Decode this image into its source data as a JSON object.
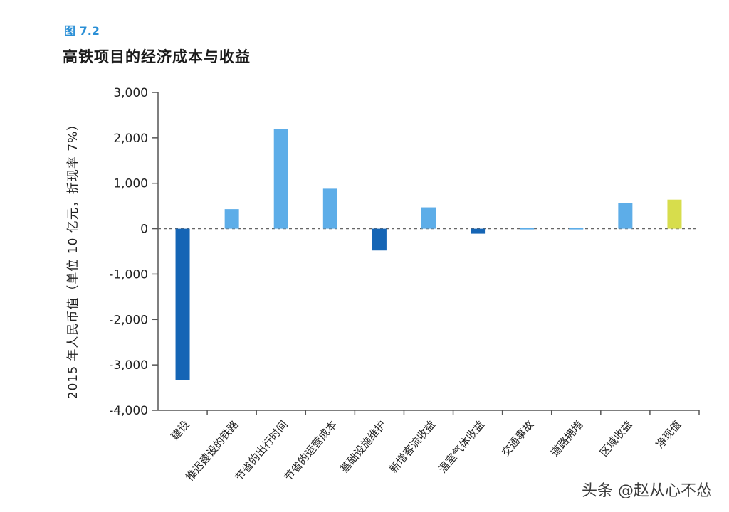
{
  "header": {
    "figure_number": "图 7.2",
    "title": "高铁项目的经济成本与收益"
  },
  "watermark": "头条 @赵从心不怂",
  "colors": {
    "cost": "#1565b5",
    "benefit": "#5dade8",
    "net": "#d7dd4c",
    "axis": "#555555",
    "zero_line": "#666666"
  },
  "chart_data": {
    "type": "bar",
    "title": "高铁项目的经济成本与收益",
    "ylabel": "2015 年人民币值（单位 10 亿元，折现率 7%）",
    "xlabel": "",
    "ylim": [
      -4000,
      3000
    ],
    "yticks": [
      3000,
      2000,
      1000,
      0,
      -1000,
      -2000,
      -3000,
      -4000
    ],
    "ytick_labels": [
      "3,000",
      "2,000",
      "1,000",
      "0",
      "-1,000",
      "-2,000",
      "-3,000",
      "-4,000"
    ],
    "zero_line": "dashed",
    "grid": false,
    "legend": "none",
    "categories": [
      "建设",
      "推迟建设的铁路",
      "节省的出行时间",
      "节省的运营成本",
      "基础设施维护",
      "新增客流收益",
      "温室气体收益",
      "交通事故",
      "道路拥堵",
      "区域收益",
      "净现值"
    ],
    "values": [
      -3330,
      430,
      2200,
      880,
      -480,
      470,
      -110,
      15,
      15,
      570,
      640
    ],
    "bar_colors": [
      "#1565b5",
      "#5dade8",
      "#5dade8",
      "#5dade8",
      "#1565b5",
      "#5dade8",
      "#1565b5",
      "#5dade8",
      "#5dade8",
      "#5dade8",
      "#d7dd4c"
    ]
  }
}
